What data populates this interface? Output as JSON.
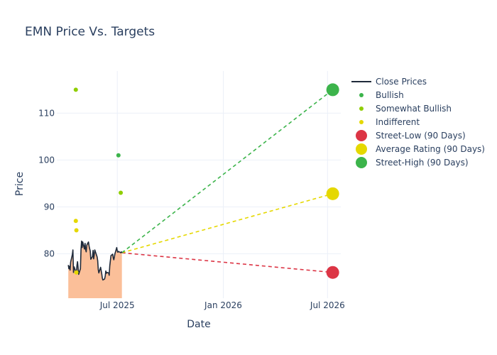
{
  "chart_data": {
    "type": "line",
    "title": "EMN Price Vs. Targets",
    "xlabel": "Date",
    "ylabel": "Price",
    "xlim": [
      "2025-03-18",
      "2026-07-24"
    ],
    "ylim": [
      70.5,
      119
    ],
    "x_ticks": [
      {
        "date": "2025-07-01",
        "label": "Jul 2025"
      },
      {
        "date": "2026-01-01",
        "label": "Jan 2026"
      },
      {
        "date": "2026-07-01",
        "label": "Jul 2026"
      }
    ],
    "y_ticks": [
      80,
      90,
      100,
      110
    ],
    "grid": true,
    "legend_position": "right",
    "close_prices": {
      "name": "Close Prices",
      "color": "#1f2a3a",
      "fill_color": "#fbbf99",
      "x": [
        "2025-04-07",
        "2025-04-08",
        "2025-04-09",
        "2025-04-10",
        "2025-04-11",
        "2025-04-14",
        "2025-04-15",
        "2025-04-16",
        "2025-04-17",
        "2025-04-21",
        "2025-04-22",
        "2025-04-23",
        "2025-04-24",
        "2025-04-25",
        "2025-04-28",
        "2025-04-29",
        "2025-04-30",
        "2025-05-01",
        "2025-05-02",
        "2025-05-05",
        "2025-05-06",
        "2025-05-07",
        "2025-05-08",
        "2025-05-09",
        "2025-05-12",
        "2025-05-13",
        "2025-05-14",
        "2025-05-15",
        "2025-05-16",
        "2025-05-19",
        "2025-05-20",
        "2025-05-21",
        "2025-05-22",
        "2025-05-23",
        "2025-05-27",
        "2025-05-28",
        "2025-05-29",
        "2025-05-30",
        "2025-06-02",
        "2025-06-03",
        "2025-06-04",
        "2025-06-05",
        "2025-06-06",
        "2025-06-09",
        "2025-06-10",
        "2025-06-11",
        "2025-06-12",
        "2025-06-13",
        "2025-06-16",
        "2025-06-17",
        "2025-06-18",
        "2025-06-20",
        "2025-06-23",
        "2025-06-24",
        "2025-06-25",
        "2025-06-26",
        "2025-06-27",
        "2025-06-30",
        "2025-07-01",
        "2025-07-02",
        "2025-07-03",
        "2025-07-07",
        "2025-07-08",
        "2025-07-09"
      ],
      "y": [
        77.6,
        76.8,
        77.3,
        76.5,
        78.2,
        79.8,
        80.8,
        76.0,
        77.2,
        75.8,
        77.5,
        78.3,
        77.0,
        75.6,
        76.8,
        80.9,
        82.7,
        81.3,
        82.5,
        81.0,
        82.2,
        80.9,
        80.4,
        81.8,
        82.5,
        81.7,
        81.1,
        80.6,
        78.8,
        79.4,
        80.7,
        78.9,
        79.7,
        80.8,
        79.3,
        78.5,
        76.6,
        75.9,
        77.1,
        76.4,
        75.7,
        74.8,
        74.4,
        74.6,
        75.2,
        76.3,
        75.8,
        76.0,
        75.9,
        75.4,
        77.4,
        79.6,
        79.9,
        79.1,
        78.7,
        79.3,
        80.0,
        81.3,
        80.6,
        80.3,
        80.5,
        80.2,
        80.4,
        80.2
      ]
    },
    "ratings": [
      {
        "name": "Bullish",
        "color": "#3cb44b",
        "points": [
          {
            "x": "2025-07-03",
            "y": 101
          }
        ]
      },
      {
        "name": "Somewhat Bullish",
        "color": "#8fce00",
        "points": [
          {
            "x": "2025-04-20",
            "y": 115
          },
          {
            "x": "2025-07-07",
            "y": 93
          }
        ]
      },
      {
        "name": "Indifferent",
        "color": "#e5d800",
        "points": [
          {
            "x": "2025-04-20",
            "y": 87
          },
          {
            "x": "2025-04-21",
            "y": 85
          },
          {
            "x": "2025-04-21",
            "y": 76
          }
        ]
      }
    ],
    "targets": [
      {
        "name": "Street-Low (90 Days)",
        "color": "#dc3545",
        "value": 76,
        "date": "2026-07-10"
      },
      {
        "name": "Average Rating (90 Days)",
        "color": "#e5d800",
        "value": 92.8,
        "date": "2026-07-10"
      },
      {
        "name": "Street-High (90 Days)",
        "color": "#3cb44b",
        "value": 115,
        "date": "2026-07-10"
      }
    ],
    "projection_start": {
      "x": "2025-07-09",
      "y": 80.2
    }
  }
}
